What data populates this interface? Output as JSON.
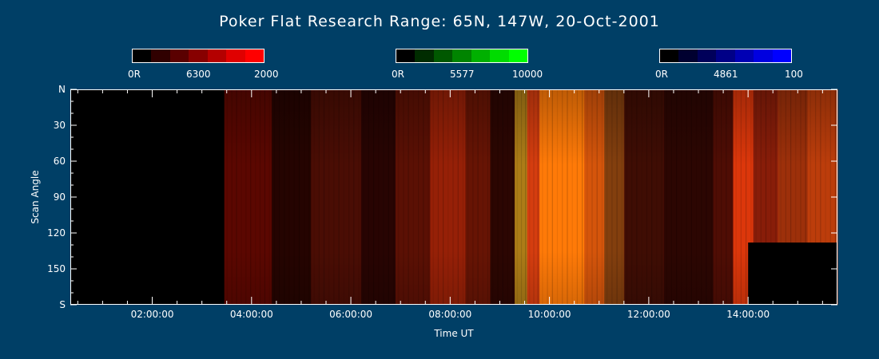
{
  "page": {
    "title": "Poker Flat Research Range: 65N, 147W, 20-Oct-2001",
    "background_color": "#003f66"
  },
  "colorbars": [
    {
      "wavelength": "6300",
      "min_label": "0R",
      "max_label": "2000",
      "colors": [
        "#000000",
        "#300000",
        "#5a0000",
        "#870000",
        "#b40000",
        "#e00000",
        "#ff0000"
      ]
    },
    {
      "wavelength": "5577",
      "min_label": "0R",
      "max_label": "10000",
      "colors": [
        "#000000",
        "#002c00",
        "#005800",
        "#008400",
        "#00b000",
        "#00dc00",
        "#00ff00"
      ]
    },
    {
      "wavelength": "4861",
      "min_label": "0R",
      "max_label": "100",
      "colors": [
        "#000000",
        "#000030",
        "#00005a",
        "#000087",
        "#0000b4",
        "#0000e0",
        "#0000ff"
      ]
    }
  ],
  "chart_data": {
    "type": "heatmap",
    "title": "Poker Flat Research Range: 65N, 147W, 20-Oct-2001",
    "xlabel": "Time UT",
    "ylabel": "Scan Angle",
    "x_unit": "hours UT",
    "xlim": [
      0.35,
      15.8
    ],
    "ylim": [
      0,
      180
    ],
    "y_orientation": "N at top, S at bottom",
    "x_ticks": [
      {
        "value": 2,
        "label": "02:00:00"
      },
      {
        "value": 4,
        "label": "04:00:00"
      },
      {
        "value": 6,
        "label": "06:00:00"
      },
      {
        "value": 8,
        "label": "08:00:00"
      },
      {
        "value": 10,
        "label": "10:00:00"
      },
      {
        "value": 12,
        "label": "12:00:00"
      },
      {
        "value": 14,
        "label": "14:00:00"
      }
    ],
    "y_ticks": [
      {
        "value": 0,
        "label": "N"
      },
      {
        "value": 30,
        "label": "30"
      },
      {
        "value": 60,
        "label": "60"
      },
      {
        "value": 90,
        "label": "90"
      },
      {
        "value": 120,
        "label": "120"
      },
      {
        "value": 150,
        "label": "150"
      },
      {
        "value": 180,
        "label": "S"
      }
    ],
    "no_data_regions": [
      {
        "x_start": 0.35,
        "x_end": 3.45,
        "y_start": 0,
        "y_end": 180
      },
      {
        "x_start": 14.0,
        "x_end": 15.8,
        "y_start": 128,
        "y_end": 180
      }
    ],
    "emission_bands": [
      {
        "x_start": 3.45,
        "x_end": 4.4,
        "color": "#7a0a02",
        "intensity": 0.75
      },
      {
        "x_start": 4.4,
        "x_end": 5.2,
        "color": "#3d0602",
        "intensity": 0.6
      },
      {
        "x_start": 5.2,
        "x_end": 6.2,
        "color": "#6a1205",
        "intensity": 0.7
      },
      {
        "x_start": 6.2,
        "x_end": 6.9,
        "color": "#430703",
        "intensity": 0.6
      },
      {
        "x_start": 6.9,
        "x_end": 7.6,
        "color": "#7a1606",
        "intensity": 0.75
      },
      {
        "x_start": 7.6,
        "x_end": 8.3,
        "color": "#b02608",
        "intensity": 0.85
      },
      {
        "x_start": 8.3,
        "x_end": 8.8,
        "color": "#8a1b06",
        "intensity": 0.75
      },
      {
        "x_start": 8.8,
        "x_end": 9.3,
        "color": "#4a0a03",
        "intensity": 0.6
      },
      {
        "x_start": 9.3,
        "x_end": 9.55,
        "color": "#c08a1a",
        "intensity": 0.9
      },
      {
        "x_start": 9.55,
        "x_end": 9.8,
        "color": "#e04010",
        "intensity": 0.95
      },
      {
        "x_start": 9.8,
        "x_end": 10.7,
        "color": "#ff7a08",
        "intensity": 1.0
      },
      {
        "x_start": 10.7,
        "x_end": 11.1,
        "color": "#e05a0c",
        "intensity": 0.95
      },
      {
        "x_start": 11.1,
        "x_end": 11.5,
        "color": "#9a4a10",
        "intensity": 0.85
      },
      {
        "x_start": 11.5,
        "x_end": 12.3,
        "color": "#5a1206",
        "intensity": 0.7
      },
      {
        "x_start": 12.3,
        "x_end": 13.3,
        "color": "#4a0a04",
        "intensity": 0.6
      },
      {
        "x_start": 13.3,
        "x_end": 13.7,
        "color": "#701206",
        "intensity": 0.7
      },
      {
        "x_start": 13.7,
        "x_end": 14.1,
        "color": "#e83a0c",
        "intensity": 0.95
      },
      {
        "x_start": 14.1,
        "x_end": 14.6,
        "color": "#a0220a",
        "intensity": 0.85
      },
      {
        "x_start": 14.6,
        "x_end": 15.2,
        "color": "#b8380c",
        "intensity": 0.85
      },
      {
        "x_start": 15.2,
        "x_end": 15.8,
        "color": "#d0440c",
        "intensity": 0.9
      }
    ],
    "grid": false,
    "axis_color": "#ffffff"
  }
}
